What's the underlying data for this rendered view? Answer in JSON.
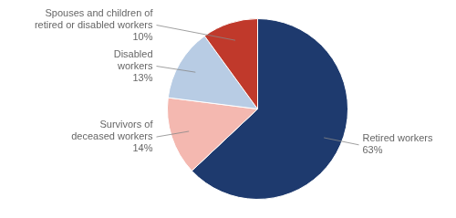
{
  "chart_data": {
    "type": "pie",
    "categories": [
      "Retired workers",
      "Survivors of\ndeceased workers",
      "Disabled\nworkers",
      "Spouses and children of\nretired or disabled workers"
    ],
    "values": [
      63,
      14,
      13,
      10
    ],
    "value_labels": [
      "63%",
      "14%",
      "13%",
      "10%"
    ],
    "colors": [
      "#1e3a6e",
      "#f4b8b0",
      "#b8cce4",
      "#c0392b"
    ]
  }
}
